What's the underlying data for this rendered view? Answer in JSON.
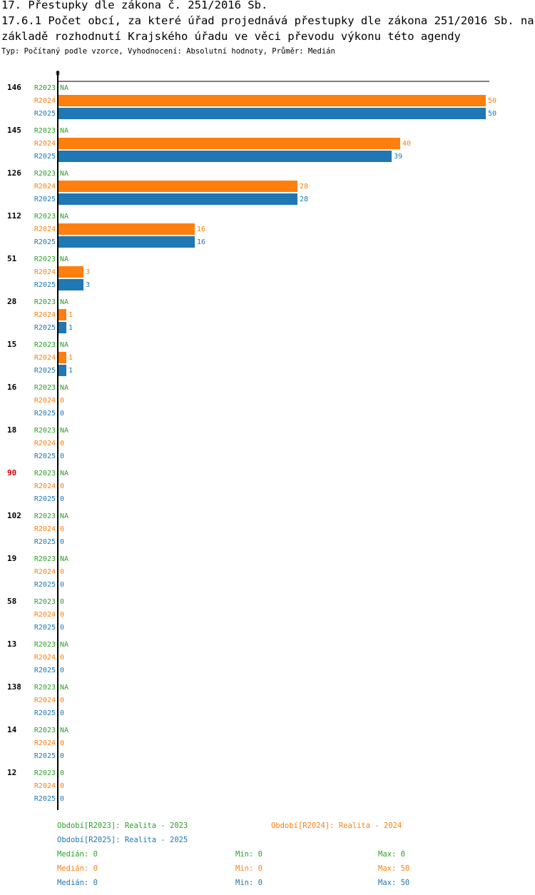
{
  "header": {
    "title_line1": "17. Přestupky dle zákona č. 251/2016 Sb.",
    "title_line2": "17.6.1 Počet obcí, za které úřad projednává přestupky dle zákona 251/2016 Sb. na",
    "title_line3": "základě rozhodnutí Krajského úřadu ve věci převodu výkonu této agendy",
    "subtitle": "Typ: Počítaný podle vzorce, Vyhodnocení: Absolutní hodnoty, Průměr: Medián"
  },
  "chart_data": {
    "type": "bar",
    "orientation": "horizontal",
    "axis_zero_label": "0",
    "xlim": [
      0,
      50
    ],
    "series_names": [
      "R2023",
      "R2024",
      "R2025"
    ],
    "series_colors": [
      "#2ca02c",
      "#ff7f0e",
      "#1f77b4"
    ],
    "missing_label": "NA",
    "groups": [
      {
        "label": "146",
        "highlight": false,
        "values": [
          null,
          50,
          50
        ]
      },
      {
        "label": "145",
        "highlight": false,
        "values": [
          null,
          40,
          39
        ]
      },
      {
        "label": "126",
        "highlight": false,
        "values": [
          null,
          28,
          28
        ]
      },
      {
        "label": "112",
        "highlight": false,
        "values": [
          null,
          16,
          16
        ]
      },
      {
        "label": "51",
        "highlight": false,
        "values": [
          null,
          3,
          3
        ]
      },
      {
        "label": "28",
        "highlight": false,
        "values": [
          null,
          1,
          1
        ]
      },
      {
        "label": "15",
        "highlight": false,
        "values": [
          null,
          1,
          1
        ]
      },
      {
        "label": "16",
        "highlight": false,
        "values": [
          null,
          0,
          0
        ]
      },
      {
        "label": "18",
        "highlight": false,
        "values": [
          null,
          0,
          0
        ]
      },
      {
        "label": "90",
        "highlight": true,
        "values": [
          null,
          0,
          0
        ]
      },
      {
        "label": "102",
        "highlight": false,
        "values": [
          null,
          0,
          0
        ]
      },
      {
        "label": "19",
        "highlight": false,
        "values": [
          null,
          0,
          0
        ]
      },
      {
        "label": "58",
        "highlight": false,
        "values": [
          0,
          0,
          0
        ]
      },
      {
        "label": "13",
        "highlight": false,
        "values": [
          null,
          0,
          0
        ]
      },
      {
        "label": "138",
        "highlight": false,
        "values": [
          null,
          0,
          0
        ]
      },
      {
        "label": "14",
        "highlight": false,
        "values": [
          null,
          0,
          0
        ]
      },
      {
        "label": "12",
        "highlight": false,
        "values": [
          0,
          0,
          0
        ]
      }
    ]
  },
  "legend": {
    "periods": {
      "r2023": "Období[R2023]: Realita - 2023",
      "r2024": "Období[R2024]: Realita - 2024",
      "r2025": "Období[R2025]: Realita - 2025"
    },
    "stats": [
      {
        "median": "Medián: 0",
        "min": "Min: 0",
        "max": "Max: 0"
      },
      {
        "median": "Medián: 0",
        "min": "Min: 0",
        "max": "Max: 50"
      },
      {
        "median": "Medián: 0",
        "min": "Min: 0",
        "max": "Max: 50"
      }
    ]
  },
  "colors": {
    "r2023": "#2ca02c",
    "r2024": "#ff7f0e",
    "r2025": "#1f77b4",
    "highlight": "#cc0000"
  }
}
